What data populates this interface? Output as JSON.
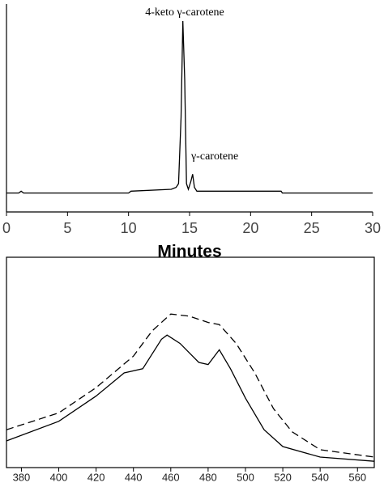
{
  "chart_data": [
    {
      "type": "line",
      "xlabel": "Minutes",
      "annotations": [
        "4-keto γ-carotene",
        "γ-carotene"
      ],
      "x": [
        0,
        1.0,
        1.2,
        1.4,
        10,
        10.2,
        13.5,
        13.9,
        14.1,
        14.3,
        14.45,
        14.6,
        14.75,
        14.9,
        15.1,
        15.25,
        15.4,
        15.6,
        16,
        22.5,
        22.6,
        30
      ],
      "values": [
        0,
        0,
        1,
        0,
        0,
        1,
        2,
        3,
        5,
        40,
        91,
        60,
        5,
        2,
        6,
        10,
        3,
        1,
        1,
        1,
        0,
        0
      ],
      "color": "#000000",
      "xlim": [
        0,
        30
      ],
      "xticks": [
        0,
        5,
        10,
        15,
        20,
        25,
        30
      ],
      "ylim": [
        -10,
        100
      ],
      "frame": "axes"
    },
    {
      "type": "line",
      "series": [
        {
          "color": "#000000",
          "dash": "solid",
          "x": [
            372,
            400,
            420,
            435,
            445,
            455,
            458,
            465,
            475,
            480,
            486,
            492,
            500,
            510,
            520,
            540,
            569
          ],
          "values": [
            12.7,
            22,
            34,
            45,
            47,
            61,
            63,
            59,
            50,
            49,
            56,
            47,
            33,
            18,
            10,
            5,
            3
          ]
        },
        {
          "color": "#000000",
          "dash": "dashed",
          "x": [
            372,
            400,
            420,
            440,
            450,
            460,
            470,
            480,
            486,
            495,
            505,
            515,
            525,
            540,
            569
          ],
          "values": [
            18,
            26,
            38,
            53,
            65,
            73,
            72,
            69,
            68,
            59,
            45,
            28,
            17,
            8.5,
            5
          ]
        }
      ],
      "xlim": [
        372,
        569
      ],
      "xticks": [
        380,
        400,
        420,
        440,
        460,
        480,
        500,
        520,
        540,
        560
      ],
      "ylim": [
        0,
        100
      ],
      "frame": "box"
    }
  ]
}
